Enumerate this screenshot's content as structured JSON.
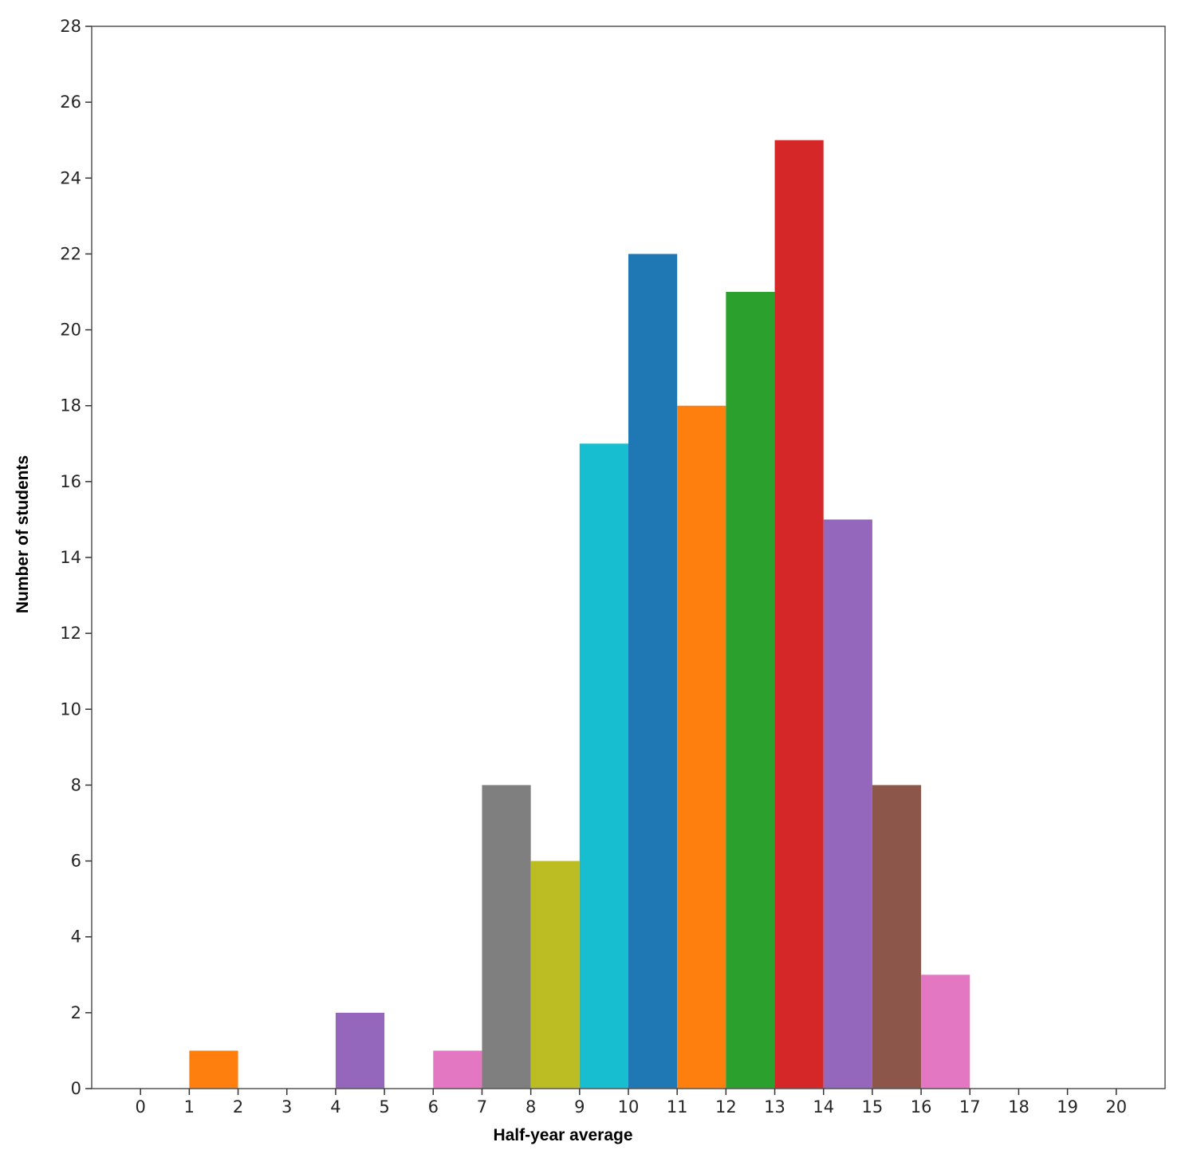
{
  "chart_data": {
    "type": "bar",
    "subtype": "histogram",
    "title": "",
    "xlabel": "Half-year average",
    "ylabel": "Number of students",
    "xlim": [
      -1,
      21
    ],
    "ylim": [
      0,
      28
    ],
    "x_ticks": [
      0,
      1,
      2,
      3,
      4,
      5,
      6,
      7,
      8,
      9,
      10,
      11,
      12,
      13,
      14,
      15,
      16,
      17,
      18,
      19,
      20
    ],
    "y_ticks": [
      0,
      2,
      4,
      6,
      8,
      10,
      12,
      14,
      16,
      18,
      20,
      22,
      24,
      26,
      28
    ],
    "grid": false,
    "legend": false,
    "bins": [
      {
        "start": 0,
        "end": 1,
        "value": 0,
        "color": "#1f77b4"
      },
      {
        "start": 1,
        "end": 2,
        "value": 1,
        "color": "#ff7f0e"
      },
      {
        "start": 2,
        "end": 3,
        "value": 0,
        "color": "#2ca02c"
      },
      {
        "start": 3,
        "end": 4,
        "value": 0,
        "color": "#d62728"
      },
      {
        "start": 4,
        "end": 5,
        "value": 2,
        "color": "#9467bd"
      },
      {
        "start": 5,
        "end": 6,
        "value": 0,
        "color": "#8c564b"
      },
      {
        "start": 6,
        "end": 7,
        "value": 1,
        "color": "#e377c2"
      },
      {
        "start": 7,
        "end": 8,
        "value": 8,
        "color": "#7f7f7f"
      },
      {
        "start": 8,
        "end": 9,
        "value": 6,
        "color": "#bcbd22"
      },
      {
        "start": 9,
        "end": 10,
        "value": 17,
        "color": "#17becf"
      },
      {
        "start": 10,
        "end": 11,
        "value": 22,
        "color": "#1f77b4"
      },
      {
        "start": 11,
        "end": 12,
        "value": 18,
        "color": "#ff7f0e"
      },
      {
        "start": 12,
        "end": 13,
        "value": 21,
        "color": "#2ca02c"
      },
      {
        "start": 13,
        "end": 14,
        "value": 25,
        "color": "#d62728"
      },
      {
        "start": 14,
        "end": 15,
        "value": 15,
        "color": "#9467bd"
      },
      {
        "start": 15,
        "end": 16,
        "value": 8,
        "color": "#8c564b"
      },
      {
        "start": 16,
        "end": 17,
        "value": 3,
        "color": "#e377c2"
      },
      {
        "start": 17,
        "end": 18,
        "value": 0,
        "color": "#7f7f7f"
      },
      {
        "start": 18,
        "end": 19,
        "value": 0,
        "color": "#bcbd22"
      },
      {
        "start": 19,
        "end": 20,
        "value": 0,
        "color": "#17becf"
      }
    ]
  }
}
